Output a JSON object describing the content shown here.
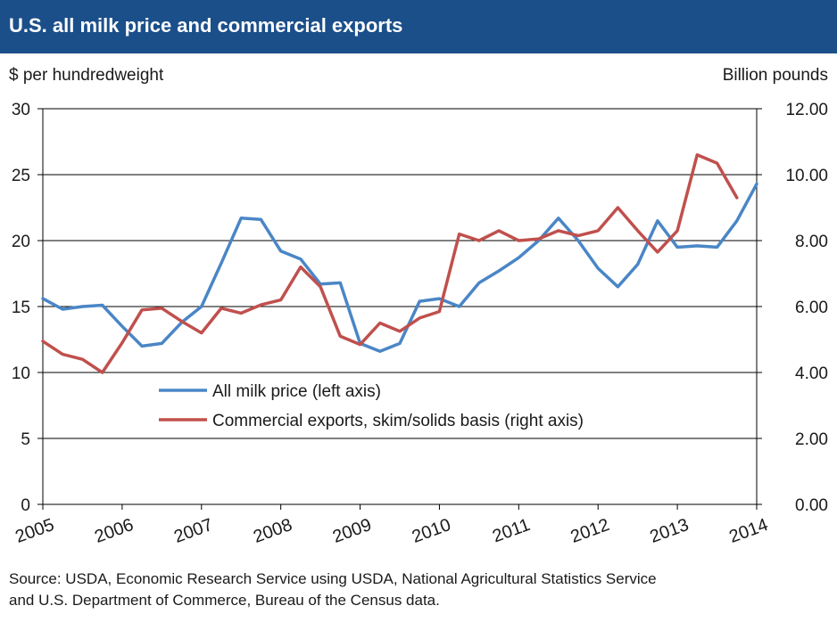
{
  "header": {
    "title": "U.S. all milk price and commercial exports"
  },
  "left_axis_label": "$ per hundredweight",
  "right_axis_label": "Billion pounds",
  "source_lines": [
    "Source: USDA, Economic Research Service using USDA, National  Agricultural Statistics Service",
    "and U.S. Department of Commerce, Bureau of the Census data."
  ],
  "colors": {
    "header_bg": "#1b4f8a",
    "milk_price": "#4a86c6",
    "exports": "#c0504d",
    "grid": "#000000"
  },
  "chart_data": {
    "type": "line",
    "title": "U.S. all milk price and commercial exports",
    "x_tick_labels": [
      "2005",
      "2006",
      "2007",
      "2008",
      "2009",
      "2010",
      "2011",
      "2012",
      "2013",
      "2014"
    ],
    "xlim": [
      2005,
      2014
    ],
    "y_left": {
      "label": "$ per hundredweight",
      "lim": [
        0,
        30
      ],
      "ticks": [
        "0",
        "5",
        "10",
        "15",
        "20",
        "25",
        "30"
      ]
    },
    "y_right": {
      "label": "Billion pounds",
      "lim": [
        0,
        12
      ],
      "ticks": [
        "0.00",
        "2.00",
        "4.00",
        "6.00",
        "8.00",
        "10.00",
        "12.00"
      ]
    },
    "grid": true,
    "legend_position": "lower-center",
    "series": [
      {
        "name": "All milk price (left axis)",
        "axis": "left",
        "x": [
          2005.0,
          2005.25,
          2005.5,
          2005.75,
          2006.0,
          2006.25,
          2006.5,
          2006.75,
          2007.0,
          2007.25,
          2007.5,
          2007.75,
          2008.0,
          2008.25,
          2008.5,
          2008.75,
          2009.0,
          2009.25,
          2009.5,
          2009.75,
          2010.0,
          2010.25,
          2010.5,
          2010.75,
          2011.0,
          2011.25,
          2011.5,
          2011.75,
          2012.0,
          2012.25,
          2012.5,
          2012.75,
          2013.0,
          2013.25,
          2013.5,
          2013.75,
          2014.0
        ],
        "values": [
          15.6,
          14.8,
          15.0,
          15.1,
          13.5,
          12.0,
          12.2,
          13.8,
          15.0,
          18.3,
          21.7,
          21.6,
          19.2,
          18.6,
          16.7,
          16.8,
          12.2,
          11.6,
          12.2,
          15.4,
          15.6,
          15.0,
          16.8,
          17.7,
          18.7,
          20.0,
          21.7,
          20.0,
          17.9,
          16.5,
          18.2,
          21.5,
          19.5,
          19.6,
          19.5,
          21.5,
          24.3
        ]
      },
      {
        "name": "Commercial exports, skim/solids basis (right axis)",
        "axis": "right",
        "x": [
          2005.0,
          2005.25,
          2005.5,
          2005.75,
          2006.0,
          2006.25,
          2006.5,
          2006.75,
          2007.0,
          2007.25,
          2007.5,
          2007.75,
          2008.0,
          2008.25,
          2008.5,
          2008.75,
          2009.0,
          2009.25,
          2009.5,
          2009.75,
          2010.0,
          2010.25,
          2010.5,
          2010.75,
          2011.0,
          2011.25,
          2011.5,
          2011.75,
          2012.0,
          2012.25,
          2012.5,
          2012.75,
          2013.0,
          2013.25,
          2013.5,
          2013.75
        ],
        "values": [
          4.95,
          4.55,
          4.4,
          4.0,
          4.9,
          5.9,
          5.95,
          5.55,
          5.2,
          5.95,
          5.8,
          6.05,
          6.2,
          7.2,
          6.6,
          5.1,
          4.85,
          5.5,
          5.25,
          5.65,
          5.85,
          8.2,
          8.0,
          8.3,
          8.0,
          8.05,
          8.3,
          8.15,
          8.3,
          9.0,
          8.3,
          7.65,
          8.3,
          10.6,
          10.35,
          9.3
        ]
      }
    ]
  }
}
